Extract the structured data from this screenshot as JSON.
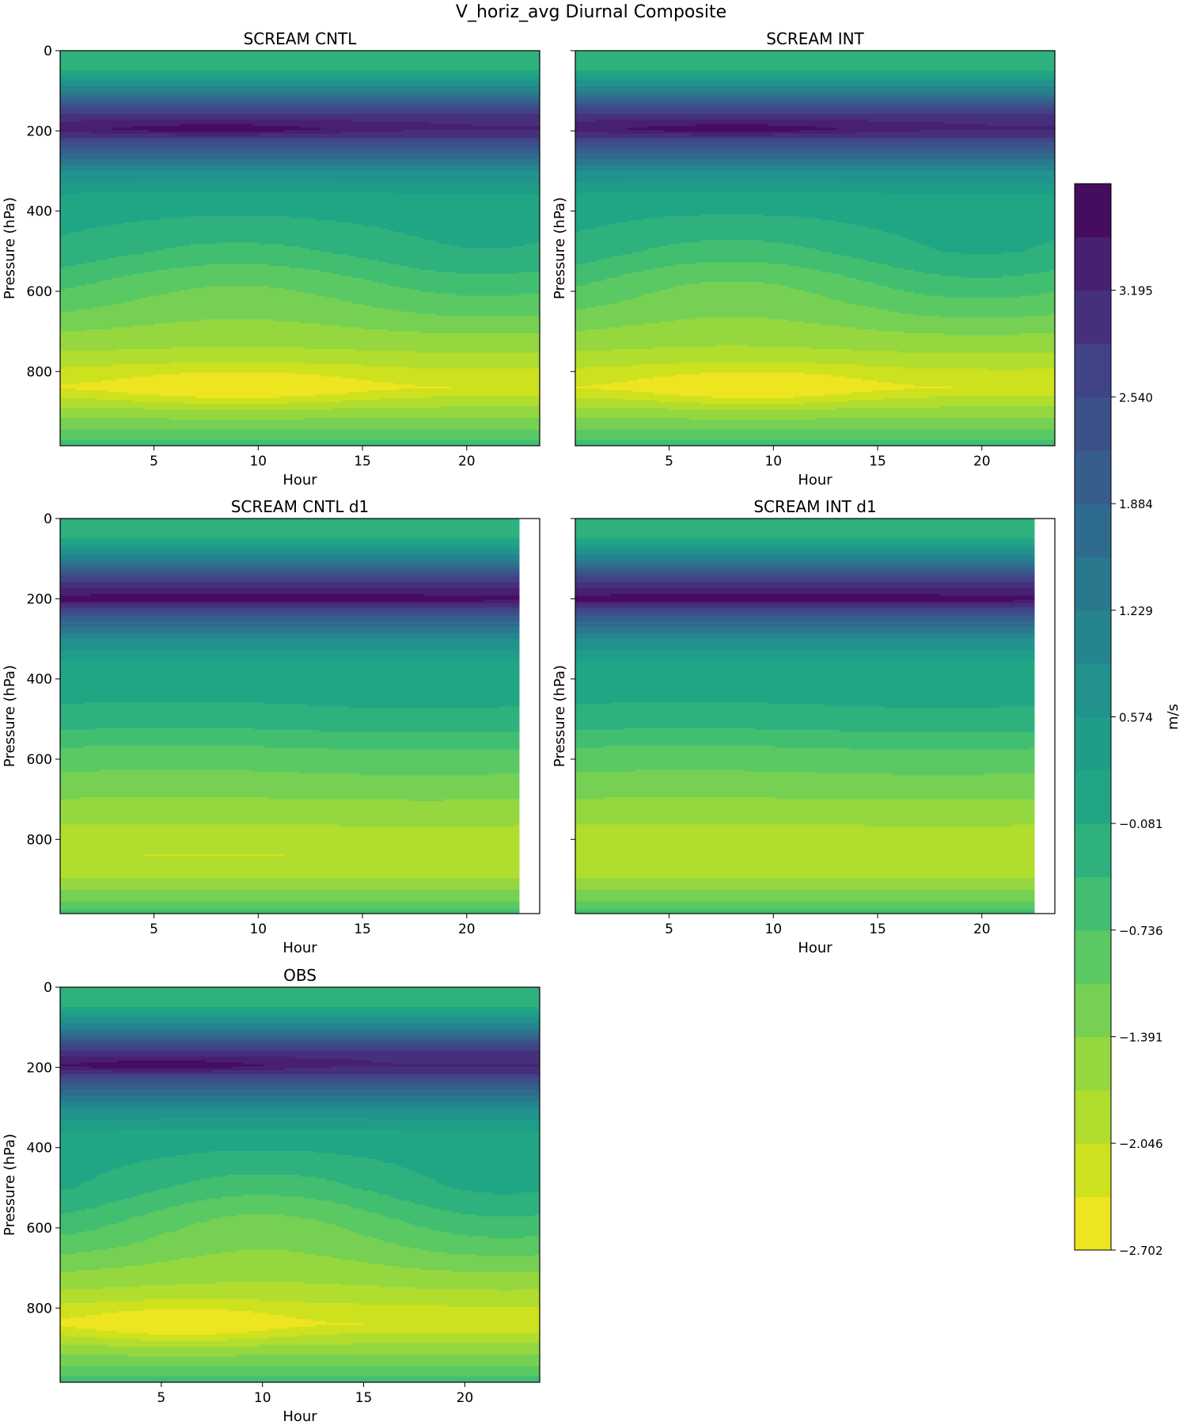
{
  "figure": {
    "title": "V_horiz_avg Diurnal Composite",
    "colorbar": {
      "label": "m/s",
      "tick_labels": [
        "3.195",
        "2.540",
        "1.884",
        "1.229",
        "0.574",
        "−0.081",
        "−0.736",
        "−1.391",
        "−2.046",
        "−2.702"
      ],
      "tick_values": [
        3.195,
        2.54,
        1.884,
        1.229,
        0.574,
        -0.081,
        -0.736,
        -1.391,
        -2.046,
        -2.702
      ],
      "vmin": -2.702,
      "vmax": 3.85,
      "levels": 20,
      "colormap": "viridis_r"
    }
  },
  "chart_data": [
    {
      "type": "heatmap",
      "title": "SCREAM CNTL",
      "xlabel": "Hour",
      "ylabel": "Pressure (hPa)",
      "xlim": [
        0.5,
        23.5
      ],
      "ylim": [
        985,
        0
      ],
      "x_data_end": 23.5,
      "x_ticks": [
        5,
        10,
        15,
        20
      ],
      "y_ticks": [
        0,
        200,
        400,
        600,
        800
      ],
      "profile": [
        [
          0,
          -0.2
        ],
        [
          40,
          -0.3
        ],
        [
          100,
          1.2
        ],
        [
          160,
          3.0
        ],
        [
          195,
          3.5
        ],
        [
          240,
          2.2
        ],
        [
          300,
          0.9
        ],
        [
          360,
          0.2
        ],
        [
          440,
          -0.1
        ],
        [
          500,
          -0.3
        ],
        [
          580,
          -0.8
        ],
        [
          660,
          -1.2
        ],
        [
          760,
          -1.8
        ],
        [
          840,
          -2.6
        ],
        [
          900,
          -1.6
        ],
        [
          960,
          -0.9
        ],
        [
          985,
          -0.5
        ]
      ],
      "jet_center": 195,
      "jet_sigma": 16,
      "jet_amp": 0.55,
      "jet_hour": 8,
      "jet_width": 6,
      "low_center": 840,
      "low_sigma": 45,
      "low_amp": 0.55,
      "low_hour": 9,
      "low_width": 6,
      "wave_amp": 0.25,
      "wave_phase": 15
    },
    {
      "type": "heatmap",
      "title": "SCREAM INT",
      "xlabel": "Hour",
      "ylabel": "Pressure (hPa)",
      "xlim": [
        0.5,
        23.5
      ],
      "ylim": [
        985,
        0
      ],
      "x_data_end": 23.5,
      "x_ticks": [
        5,
        10,
        15,
        20
      ],
      "y_ticks": [
        0,
        200,
        400,
        600,
        800
      ],
      "profile": [
        [
          0,
          -0.2
        ],
        [
          40,
          -0.3
        ],
        [
          100,
          1.2
        ],
        [
          160,
          3.0
        ],
        [
          195,
          3.5
        ],
        [
          240,
          2.2
        ],
        [
          300,
          0.9
        ],
        [
          360,
          0.2
        ],
        [
          440,
          -0.1
        ],
        [
          500,
          -0.3
        ],
        [
          580,
          -0.8
        ],
        [
          660,
          -1.2
        ],
        [
          760,
          -1.8
        ],
        [
          840,
          -2.6
        ],
        [
          900,
          -1.6
        ],
        [
          960,
          -0.9
        ],
        [
          985,
          -0.5
        ]
      ],
      "jet_center": 195,
      "jet_sigma": 16,
      "jet_amp": 0.55,
      "jet_hour": 8,
      "jet_width": 6,
      "low_center": 840,
      "low_sigma": 45,
      "low_amp": 0.55,
      "low_hour": 9,
      "low_width": 5.5,
      "wave_amp": 0.3,
      "wave_phase": 14
    },
    {
      "type": "heatmap",
      "title": "SCREAM CNTL d1",
      "xlabel": "Hour",
      "ylabel": "Pressure (hPa)",
      "xlim": [
        0.5,
        23.5
      ],
      "ylim": [
        985,
        0
      ],
      "x_data_end": 22.5,
      "x_ticks": [
        5,
        10,
        15,
        20
      ],
      "y_ticks": [
        0,
        200,
        400,
        600,
        800
      ],
      "profile": [
        [
          0,
          -0.2
        ],
        [
          40,
          -0.3
        ],
        [
          100,
          1.2
        ],
        [
          160,
          3.0
        ],
        [
          200,
          3.7
        ],
        [
          240,
          2.2
        ],
        [
          300,
          0.9
        ],
        [
          360,
          0.2
        ],
        [
          440,
          0.0
        ],
        [
          500,
          -0.2
        ],
        [
          580,
          -0.8
        ],
        [
          660,
          -1.2
        ],
        [
          760,
          -1.7
        ],
        [
          840,
          -2.0
        ],
        [
          900,
          -1.7
        ],
        [
          960,
          -1.0
        ],
        [
          985,
          -0.5
        ]
      ],
      "jet_center": 200,
      "jet_sigma": 14,
      "jet_amp": 0.1,
      "jet_hour": 10,
      "jet_width": 10,
      "low_center": 840,
      "low_sigma": 20,
      "low_amp": 0.12,
      "low_hour": 8,
      "low_width": 8,
      "wave_amp": 0.05,
      "wave_phase": 12
    },
    {
      "type": "heatmap",
      "title": "SCREAM INT d1",
      "xlabel": "Hour",
      "ylabel": "Pressure (hPa)",
      "xlim": [
        0.5,
        23.5
      ],
      "ylim": [
        985,
        0
      ],
      "x_data_end": 22.5,
      "x_ticks": [
        5,
        10,
        15,
        20
      ],
      "y_ticks": [
        0,
        200,
        400,
        600,
        800
      ],
      "profile": [
        [
          0,
          -0.2
        ],
        [
          40,
          -0.3
        ],
        [
          100,
          1.2
        ],
        [
          160,
          3.0
        ],
        [
          200,
          3.7
        ],
        [
          240,
          2.2
        ],
        [
          300,
          0.9
        ],
        [
          360,
          0.2
        ],
        [
          440,
          0.0
        ],
        [
          500,
          -0.2
        ],
        [
          580,
          -0.8
        ],
        [
          660,
          -1.2
        ],
        [
          760,
          -1.7
        ],
        [
          840,
          -2.0
        ],
        [
          900,
          -1.7
        ],
        [
          960,
          -1.0
        ],
        [
          985,
          -0.5
        ]
      ],
      "jet_center": 200,
      "jet_sigma": 14,
      "jet_amp": 0.08,
      "jet_hour": 10,
      "jet_width": 10,
      "low_center": 840,
      "low_sigma": 20,
      "low_amp": 0.0,
      "low_hour": 8,
      "low_width": 8,
      "wave_amp": 0.04,
      "wave_phase": 12
    },
    {
      "type": "heatmap",
      "title": "OBS",
      "xlabel": "Hour",
      "ylabel": "Pressure (hPa)",
      "xlim": [
        0.0,
        23.7
      ],
      "ylim": [
        985,
        0
      ],
      "x_data_end": 23.7,
      "x_ticks": [
        5,
        10,
        15,
        20
      ],
      "y_ticks": [
        0,
        200,
        400,
        600,
        800
      ],
      "profile": [
        [
          0,
          -0.2
        ],
        [
          40,
          -0.3
        ],
        [
          100,
          1.2
        ],
        [
          160,
          3.0
        ],
        [
          195,
          3.5
        ],
        [
          240,
          2.2
        ],
        [
          300,
          0.9
        ],
        [
          360,
          0.2
        ],
        [
          440,
          -0.1
        ],
        [
          500,
          -0.3
        ],
        [
          580,
          -0.8
        ],
        [
          660,
          -1.2
        ],
        [
          760,
          -1.8
        ],
        [
          840,
          -2.6
        ],
        [
          900,
          -1.6
        ],
        [
          960,
          -0.9
        ],
        [
          985,
          -0.5
        ]
      ],
      "jet_center": 195,
      "jet_sigma": 16,
      "jet_amp": 0.6,
      "jet_hour": 5,
      "jet_width": 6,
      "low_center": 840,
      "low_sigma": 45,
      "low_amp": 0.55,
      "low_hour": 6,
      "low_width": 5,
      "wave_amp": 0.35,
      "wave_phase": 16
    }
  ]
}
